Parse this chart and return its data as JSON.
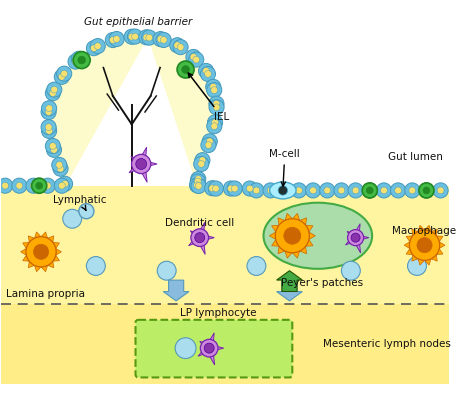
{
  "fig_w": 4.74,
  "fig_h": 3.95,
  "dpi": 100,
  "bg_white": "#FFFFFF",
  "bg_yellow": "#FFF5A0",
  "bg_yellow2": "#FFEE88",
  "epithelial_blue": "#6BBFDF",
  "epithelial_inner": "#F5E070",
  "epithelial_border": "#4499BB",
  "villus_fill": "#FDFACC",
  "green_cell": "#44BB44",
  "green_inner": "#228822",
  "purple_body": "#CC88DD",
  "purple_nucleus": "#8833AA",
  "blue_lymph": "#AADDEE",
  "blue_lymph_border": "#5599BB",
  "orange_macro": "#FFAA00",
  "orange_inner": "#CC6600",
  "orange_border": "#CC6600",
  "peyer_fill": "#AADDAA",
  "peyer_border": "#44AA44",
  "mcell_fill": "#AAEEFF",
  "mcell_border": "#44AACC",
  "arrow_blue": "#88BBDD",
  "arrow_blue_border": "#5599BB",
  "arrow_green": "#44AA44",
  "mln_fill": "#BBEE66",
  "mln_border": "#559911",
  "crypt_color": "#111111",
  "text_color": "#111111",
  "dashed_color": "#555555",
  "labels": {
    "gut_epithelial": "Gut epithelial barrier",
    "IEL": "IEL",
    "lymphatic": "Lymphatic",
    "dendritic": "Dendritic cell",
    "lp_lymphocyte": "LP lymphocyte",
    "lamina_propria": "Lamina propria",
    "peyers": "Peyer's patches",
    "mcell": "M-cell",
    "gut_lumen": "Gut lumen",
    "macrophage": "Macrophage",
    "mesenteric": "Mesenteric lymph nodes"
  }
}
